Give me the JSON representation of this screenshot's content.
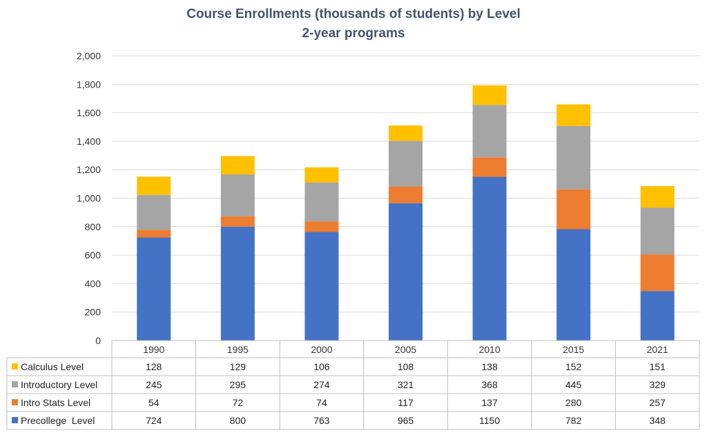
{
  "chart_data": {
    "type": "bar",
    "stacked": true,
    "title": "Course Enrollments (thousands of students) by Level",
    "subtitle": "2-year programs",
    "categories": [
      "1990",
      "1995",
      "2000",
      "2005",
      "2010",
      "2015",
      "2021"
    ],
    "ylim": [
      0,
      2000
    ],
    "yticks": [
      "0",
      "200",
      "400",
      "600",
      "800",
      "1,000",
      "1,200",
      "1,400",
      "1,600",
      "1,800",
      "2,000"
    ],
    "ytick_values": [
      0,
      200,
      400,
      600,
      800,
      1000,
      1200,
      1400,
      1600,
      1800,
      2000
    ],
    "grid": true,
    "legend": "data-table",
    "series": [
      {
        "name": "Precollege  Level",
        "color": "#4472c4",
        "values": [
          724,
          800,
          763,
          965,
          1150,
          782,
          348
        ]
      },
      {
        "name": "Intro Stats Level",
        "color": "#ed7d31",
        "values": [
          54,
          72,
          74,
          117,
          137,
          280,
          257
        ]
      },
      {
        "name": "Introductory Level",
        "color": "#a5a5a5",
        "values": [
          245,
          295,
          274,
          321,
          368,
          445,
          329
        ]
      },
      {
        "name": "Calculus Level",
        "color": "#ffc000",
        "values": [
          128,
          129,
          106,
          108,
          138,
          152,
          151
        ]
      }
    ],
    "table_row_order": [
      "Calculus Level",
      "Introductory Level",
      "Intro Stats Level",
      "Precollege  Level"
    ]
  }
}
